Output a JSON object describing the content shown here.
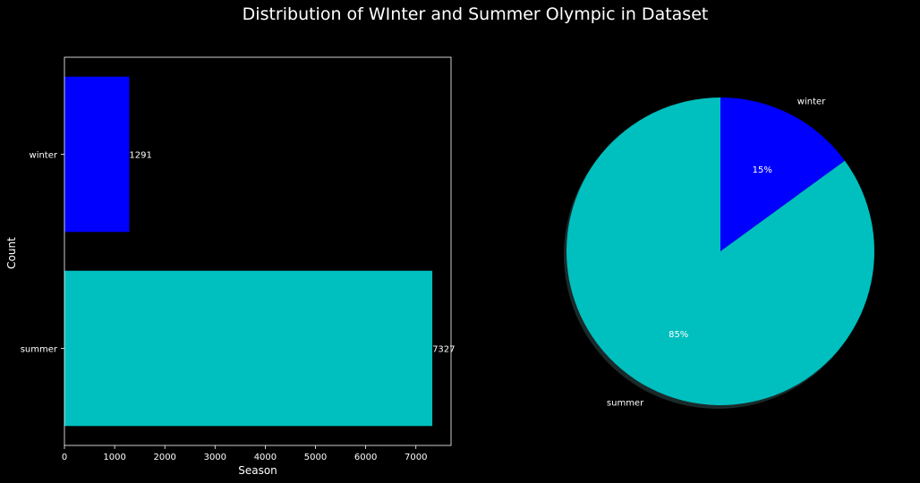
{
  "figure": {
    "title": "Distribution of WInter and Summer Olympic in Dataset",
    "background": "#000000"
  },
  "chart_data": [
    {
      "type": "bar",
      "orientation": "horizontal",
      "categories": [
        "winter",
        "summer"
      ],
      "values": [
        1291,
        7327
      ],
      "data_labels": [
        "1291",
        "7327"
      ],
      "colors": [
        "#0000ff",
        "#00bfbf"
      ],
      "xlabel": "Season",
      "ylabel": "Count",
      "xlim": [
        0,
        7700
      ],
      "xticks": [
        0,
        1000,
        2000,
        3000,
        4000,
        5000,
        6000,
        7000
      ],
      "grid": false
    },
    {
      "type": "pie",
      "labels": [
        "winter",
        "summer"
      ],
      "values": [
        1291,
        7327
      ],
      "pct_labels": [
        "15%",
        "85%"
      ],
      "colors": [
        "#0000ff",
        "#00bfbf"
      ],
      "shadow": true,
      "start_angle_deg": 90
    }
  ]
}
